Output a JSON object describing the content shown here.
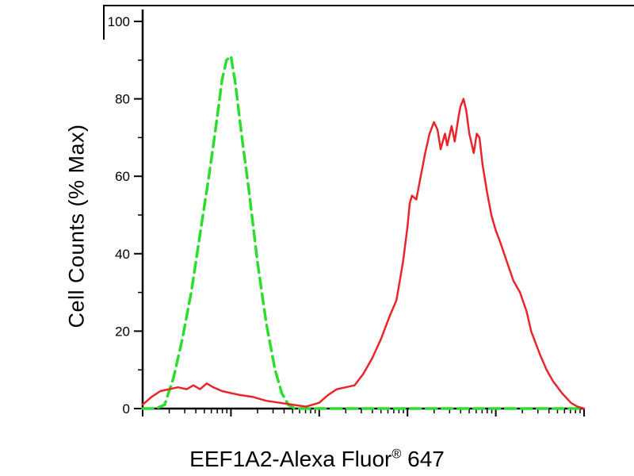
{
  "chart_data": {
    "type": "line",
    "title": "",
    "xlabel": {
      "main": "EEF1A2-Alexa Fluor",
      "sup": "®",
      "suffix": " 647"
    },
    "ylabel": "Cell Counts (% Max)",
    "ylim": [
      0,
      100
    ],
    "y_ticks": [
      0,
      20,
      40,
      60,
      80,
      100
    ],
    "y_minor_ticks": [
      10,
      30,
      50,
      70,
      90
    ],
    "x_axis": {
      "scale": "log",
      "decades": 5,
      "tick_labels_visible": false
    },
    "grid": false,
    "legend": "none",
    "series": [
      {
        "id": "green-dashed-curve",
        "style": "dashed",
        "color": "#2ddd2d",
        "points": [
          [
            0.0,
            0
          ],
          [
            0.03,
            0
          ],
          [
            0.05,
            1
          ],
          [
            0.07,
            8
          ],
          [
            0.09,
            18
          ],
          [
            0.11,
            30
          ],
          [
            0.13,
            45
          ],
          [
            0.15,
            60
          ],
          [
            0.165,
            72
          ],
          [
            0.18,
            85
          ],
          [
            0.19,
            90
          ],
          [
            0.2,
            91
          ],
          [
            0.21,
            84
          ],
          [
            0.225,
            70
          ],
          [
            0.24,
            57
          ],
          [
            0.26,
            38
          ],
          [
            0.28,
            22
          ],
          [
            0.3,
            10
          ],
          [
            0.315,
            4
          ],
          [
            0.33,
            1
          ],
          [
            0.345,
            0
          ],
          [
            0.5,
            0
          ],
          [
            0.7,
            0
          ],
          [
            0.9,
            0
          ],
          [
            1.0,
            0
          ]
        ]
      },
      {
        "id": "red-solid-curve",
        "style": "solid",
        "color": "#e8262a",
        "points": [
          [
            0.0,
            1
          ],
          [
            0.02,
            3
          ],
          [
            0.04,
            4.5
          ],
          [
            0.06,
            5
          ],
          [
            0.08,
            5.5
          ],
          [
            0.1,
            5
          ],
          [
            0.115,
            6
          ],
          [
            0.13,
            5
          ],
          [
            0.145,
            6.5
          ],
          [
            0.16,
            5.5
          ],
          [
            0.18,
            4.5
          ],
          [
            0.2,
            4
          ],
          [
            0.22,
            3.5
          ],
          [
            0.25,
            3
          ],
          [
            0.28,
            2
          ],
          [
            0.31,
            1.5
          ],
          [
            0.34,
            1
          ],
          [
            0.37,
            0.5
          ],
          [
            0.4,
            1.5
          ],
          [
            0.42,
            3.5
          ],
          [
            0.44,
            5
          ],
          [
            0.46,
            5.5
          ],
          [
            0.48,
            6
          ],
          [
            0.5,
            9
          ],
          [
            0.52,
            13
          ],
          [
            0.54,
            18
          ],
          [
            0.56,
            24
          ],
          [
            0.575,
            28
          ],
          [
            0.59,
            38
          ],
          [
            0.6,
            47
          ],
          [
            0.605,
            53
          ],
          [
            0.61,
            55
          ],
          [
            0.62,
            54
          ],
          [
            0.63,
            60
          ],
          [
            0.64,
            66
          ],
          [
            0.65,
            71
          ],
          [
            0.66,
            74
          ],
          [
            0.668,
            72
          ],
          [
            0.675,
            67
          ],
          [
            0.685,
            71
          ],
          [
            0.69,
            68
          ],
          [
            0.7,
            73
          ],
          [
            0.707,
            69
          ],
          [
            0.715,
            75
          ],
          [
            0.72,
            78
          ],
          [
            0.727,
            80
          ],
          [
            0.733,
            77
          ],
          [
            0.74,
            71
          ],
          [
            0.75,
            66
          ],
          [
            0.757,
            71
          ],
          [
            0.763,
            70
          ],
          [
            0.77,
            63
          ],
          [
            0.78,
            56
          ],
          [
            0.79,
            50
          ],
          [
            0.8,
            46
          ],
          [
            0.81,
            43
          ],
          [
            0.825,
            38
          ],
          [
            0.84,
            33
          ],
          [
            0.855,
            30
          ],
          [
            0.87,
            25
          ],
          [
            0.88,
            20
          ],
          [
            0.89,
            17
          ],
          [
            0.9,
            14
          ],
          [
            0.915,
            10
          ],
          [
            0.93,
            7
          ],
          [
            0.95,
            4
          ],
          [
            0.97,
            1.5
          ],
          [
            0.985,
            0.5
          ],
          [
            1.0,
            0
          ]
        ]
      }
    ],
    "colors": {
      "axis": "#000000",
      "background": "#ffffff"
    }
  }
}
